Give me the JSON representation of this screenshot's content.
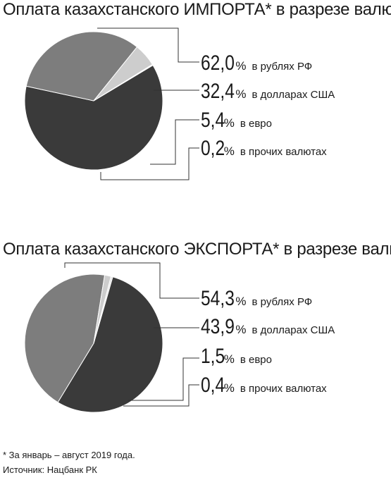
{
  "colors": {
    "dark": "#3a3a3a",
    "mid": "#7d7d7d",
    "light": "#cdcdcd",
    "lightest": "#e4e4e4"
  },
  "chart_data": [
    {
      "type": "pie",
      "title": "Оплата казахстанского ИМПОРТА* в разрезе валют",
      "unit": "%",
      "labels": [
        "в рублях РФ",
        "в долларах США",
        "в евро",
        "в прочих валютах"
      ],
      "values": [
        62.0,
        32.4,
        5.4,
        0.2
      ],
      "value_labels": [
        "62,0",
        "32,4",
        "5,4",
        "0,2"
      ],
      "slice_colors": [
        "#3a3a3a",
        "#7d7d7d",
        "#cdcdcd",
        "#e4e4e4"
      ],
      "legend_position": "right"
    },
    {
      "type": "pie",
      "title": "Оплата казахстанского ЭКСПОРТА* в разрезе валют",
      "unit": "%",
      "labels": [
        "в рублях РФ",
        "в долларах США",
        "в евро",
        "в прочих валютах"
      ],
      "values": [
        54.3,
        43.9,
        1.5,
        0.4
      ],
      "value_labels": [
        "54,3",
        "43,9",
        "1,5",
        "0,4"
      ],
      "slice_colors": [
        "#3a3a3a",
        "#7d7d7d",
        "#cdcdcd",
        "#e4e4e4"
      ],
      "legend_position": "right"
    }
  ],
  "footnotes": {
    "note": "* За январь – август 2019 года.",
    "source": "Источник: Нацбанк РК"
  }
}
